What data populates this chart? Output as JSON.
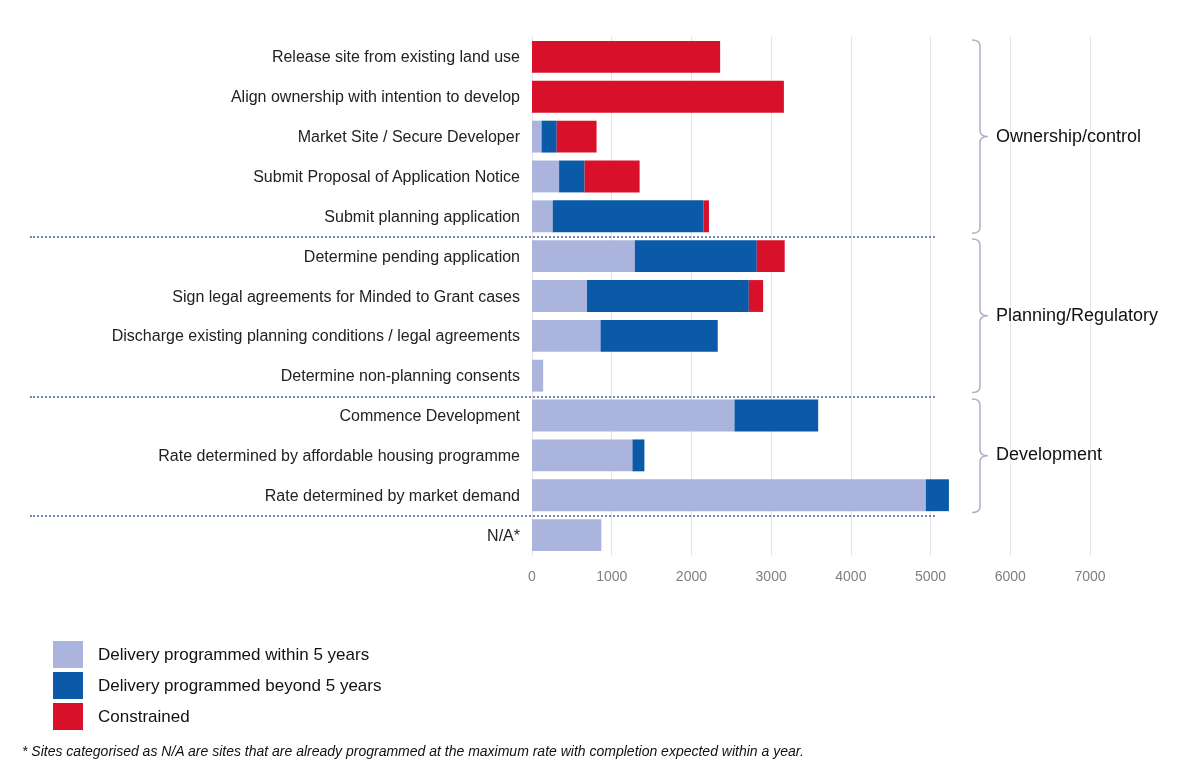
{
  "chart_data": {
    "type": "bar",
    "orientation": "horizontal",
    "stacked": true,
    "categories": [
      "Release site from existing land use",
      "Align ownership with intention to develop",
      "Market Site / Secure Developer",
      "Submit Proposal of Application Notice",
      "Submit planning application",
      "Determine pending application",
      "Sign legal agreements for Minded to Grant cases",
      "Discharge existing planning conditions / legal agreements",
      "Determine non-planning consents",
      "Commence Development",
      "Rate determined by affordable housing programme",
      "Rate determined by market demand",
      "N/A*"
    ],
    "series": [
      {
        "name": "Delivery programmed within 5 years",
        "color": "#aab4dc",
        "values": [
          0,
          0,
          120,
          340,
          260,
          1290,
          690,
          860,
          140,
          2540,
          1260,
          4940,
          870
        ]
      },
      {
        "name": "Delivery programmed beyond 5 years",
        "color": "#0a5aa8",
        "values": [
          0,
          0,
          190,
          320,
          1890,
          1530,
          2030,
          1470,
          0,
          1050,
          150,
          290,
          0
        ]
      },
      {
        "name": "Constrained",
        "color": "#d9102a",
        "values": [
          2360,
          3160,
          500,
          690,
          70,
          350,
          180,
          0,
          0,
          0,
          0,
          0,
          0
        ]
      }
    ],
    "xlim": [
      0,
      7000
    ],
    "xticks": [
      0,
      1000,
      2000,
      3000,
      4000,
      5000,
      6000,
      7000
    ],
    "grid": "x",
    "legend": "bottom left",
    "annotations": [
      "Ownership/control",
      "Planning/Regulatory",
      "Development",
      "* Sites categorised as N/A are sites that are already programmed at the maximum rate with completion expected within a year."
    ]
  }
}
